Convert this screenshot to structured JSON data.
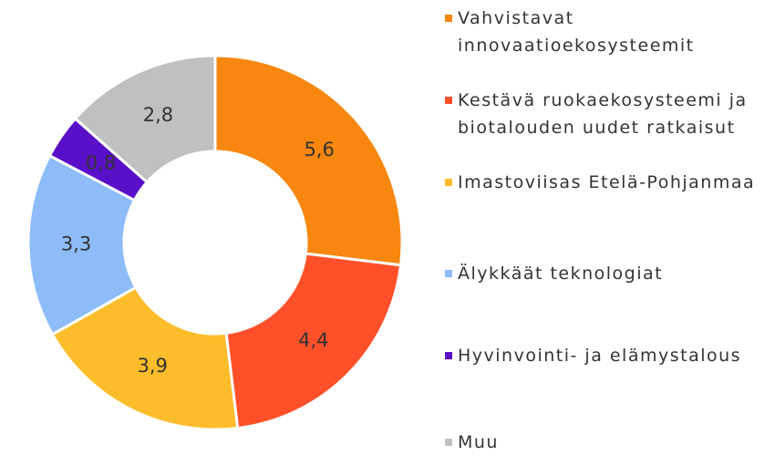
{
  "chart_data": {
    "type": "donut",
    "categories": [
      "Vahvistavat innovaatioekosysteemit",
      "Kestävä ruokaekosysteemi ja biotalouden uudet ratkaisut",
      "Imastoviisas Etelä-Pohjanmaa",
      "Älykkäät teknologiat",
      "Hyvinvointi- ja elämystalous",
      "Muu"
    ],
    "values": [
      5.6,
      4.4,
      3.9,
      3.3,
      0.8,
      2.8
    ],
    "value_labels": [
      "5,6",
      "4,4",
      "3,9",
      "3,3",
      "0,8",
      "2,8"
    ],
    "colors": [
      "#f7870f",
      "#ff5029",
      "#fdbd2a",
      "#8dbcf8",
      "#5a0fc8",
      "#c0c0c0"
    ],
    "legend": "right"
  }
}
